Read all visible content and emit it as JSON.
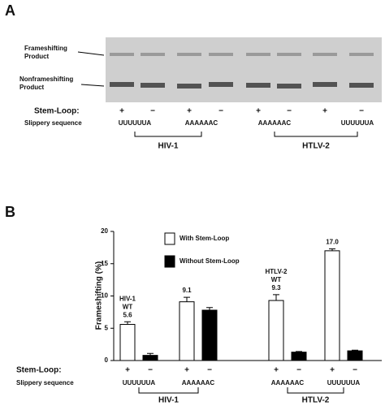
{
  "panel_a": {
    "label": "A",
    "frameshifting_label": [
      "Frameshifting",
      "Product"
    ],
    "nonframeshifting_label": [
      "Nonframeshifting",
      "Product"
    ],
    "stem_loop_label": "Stem-Loop:",
    "stem_loop": [
      "+",
      "−",
      "+",
      "−",
      "+",
      "−",
      "+",
      "−"
    ],
    "slippery_label": "Slippery sequence",
    "sequences": [
      "UUUUUUA",
      "AAAAAAC",
      "AAAAAAC",
      "UUUUUUA"
    ],
    "groups": [
      "HIV-1",
      "HTLV-2"
    ]
  },
  "chart_data": {
    "type": "bar",
    "panel_label": "B",
    "ylabel": "Frameshifting (%)",
    "categories": [
      "UUUUUUA",
      "AAAAAAC",
      "AAAAAAC",
      "UUUUUUA"
    ],
    "series": [
      {
        "name": "With Stem-Loop",
        "color": "#ffffff",
        "stem_loop": "+",
        "values": [
          5.6,
          9.1,
          9.3,
          17.0
        ],
        "value_labels": [
          "5.6",
          "9.1",
          "9.3",
          "17.0"
        ],
        "errors": [
          0.4,
          0.7,
          0.9,
          0.3
        ]
      },
      {
        "name": "Without Stem-Loop",
        "color": "#000000",
        "stem_loop": "−",
        "values": [
          0.8,
          7.8,
          1.3,
          1.5
        ],
        "errors": [
          0.3,
          0.4,
          0.1,
          0.1
        ]
      }
    ],
    "annotations": [
      [
        "HIV-1",
        "WT"
      ],
      null,
      [
        "HTLV-2",
        "WT"
      ],
      null
    ],
    "stem_loop_label": "Stem-Loop:",
    "slippery_label": "Slippery sequence",
    "groups": [
      "HIV-1",
      "HTLV-2"
    ],
    "legend": "upper center",
    "ylim": [
      0,
      20
    ],
    "yticks": [
      0,
      5,
      10,
      15,
      20
    ]
  }
}
